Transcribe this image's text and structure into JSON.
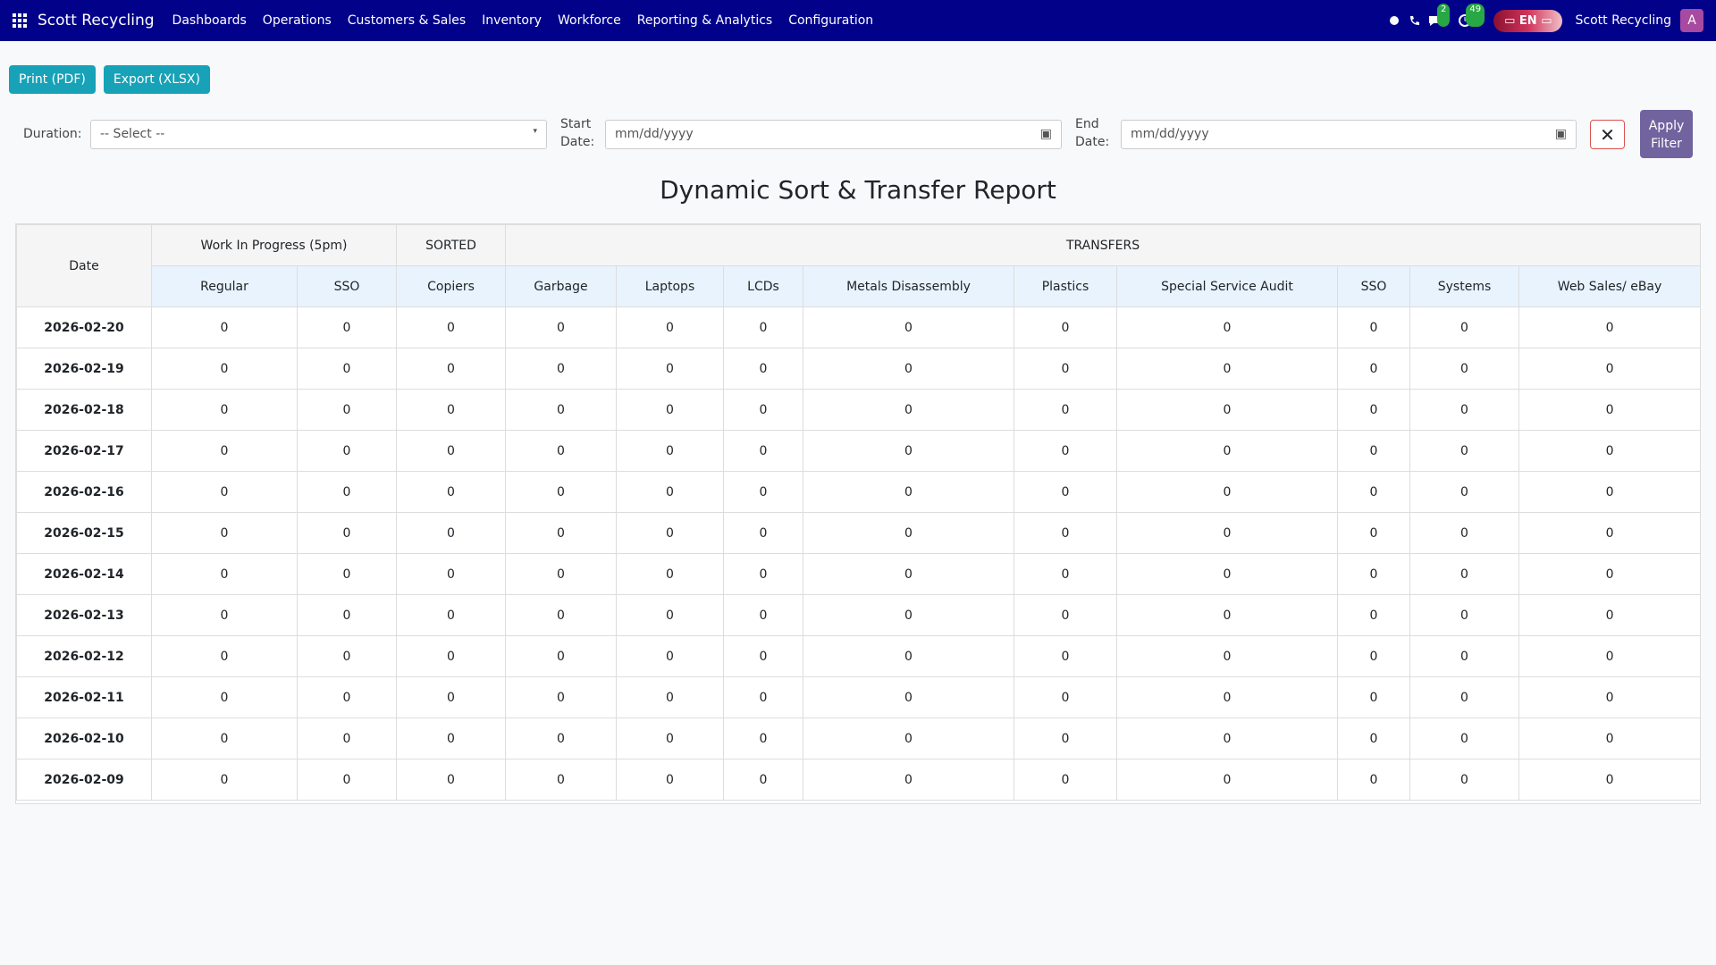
{
  "navbar": {
    "brand": "Scott Recycling",
    "menu": [
      "Dashboards",
      "Operations",
      "Customers & Sales",
      "Inventory",
      "Workforce",
      "Reporting & Analytics",
      "Configuration"
    ],
    "chat_badge": "2",
    "activity_badge": "49",
    "language": "EN",
    "company": "Scott Recycling",
    "avatar": "A"
  },
  "toolbar": {
    "buttons": [
      "Print (PDF)",
      "Export (XLSX)"
    ]
  },
  "filters": {
    "duration_label": "Duration:",
    "duration_placeholder": "-- Select --",
    "start_label": "Start Date:",
    "start_placeholder": "mm/dd/yyyy",
    "end_label": "End Date:",
    "end_placeholder": "mm/dd/yyyy",
    "apply": "Apply Filter"
  },
  "report": {
    "title": "Dynamic Sort & Transfer Report",
    "date_header": "Date",
    "groups": [
      {
        "label": "Work In Progress (5pm)",
        "span": 2
      },
      {
        "label": "SORTED",
        "span": 1
      },
      {
        "label": "TRANSFERS",
        "span": 9
      }
    ],
    "columns": [
      "Regular",
      "SSO",
      "Copiers",
      "Garbage",
      "Laptops",
      "LCDs",
      "Metals Disassembly",
      "Plastics",
      "Special Service Audit",
      "SSO",
      "Systems",
      "Web Sales/ eBay"
    ],
    "rows": [
      {
        "date": "2026-02-20",
        "values": [
          0,
          0,
          0,
          0,
          0,
          0,
          0,
          0,
          0,
          0,
          0,
          0
        ]
      },
      {
        "date": "2026-02-19",
        "values": [
          0,
          0,
          0,
          0,
          0,
          0,
          0,
          0,
          0,
          0,
          0,
          0
        ]
      },
      {
        "date": "2026-02-18",
        "values": [
          0,
          0,
          0,
          0,
          0,
          0,
          0,
          0,
          0,
          0,
          0,
          0
        ]
      },
      {
        "date": "2026-02-17",
        "values": [
          0,
          0,
          0,
          0,
          0,
          0,
          0,
          0,
          0,
          0,
          0,
          0
        ]
      },
      {
        "date": "2026-02-16",
        "values": [
          0,
          0,
          0,
          0,
          0,
          0,
          0,
          0,
          0,
          0,
          0,
          0
        ]
      },
      {
        "date": "2026-02-15",
        "values": [
          0,
          0,
          0,
          0,
          0,
          0,
          0,
          0,
          0,
          0,
          0,
          0
        ]
      },
      {
        "date": "2026-02-14",
        "values": [
          0,
          0,
          0,
          0,
          0,
          0,
          0,
          0,
          0,
          0,
          0,
          0
        ]
      },
      {
        "date": "2026-02-13",
        "values": [
          0,
          0,
          0,
          0,
          0,
          0,
          0,
          0,
          0,
          0,
          0,
          0
        ]
      },
      {
        "date": "2026-02-12",
        "values": [
          0,
          0,
          0,
          0,
          0,
          0,
          0,
          0,
          0,
          0,
          0,
          0
        ]
      },
      {
        "date": "2026-02-11",
        "values": [
          0,
          0,
          0,
          0,
          0,
          0,
          0,
          0,
          0,
          0,
          0,
          0
        ]
      },
      {
        "date": "2026-02-10",
        "values": [
          0,
          0,
          0,
          0,
          0,
          0,
          0,
          0,
          0,
          0,
          0,
          0
        ]
      },
      {
        "date": "2026-02-09",
        "values": [
          0,
          0,
          0,
          0,
          0,
          0,
          0,
          0,
          0,
          0,
          0,
          0
        ]
      }
    ]
  }
}
